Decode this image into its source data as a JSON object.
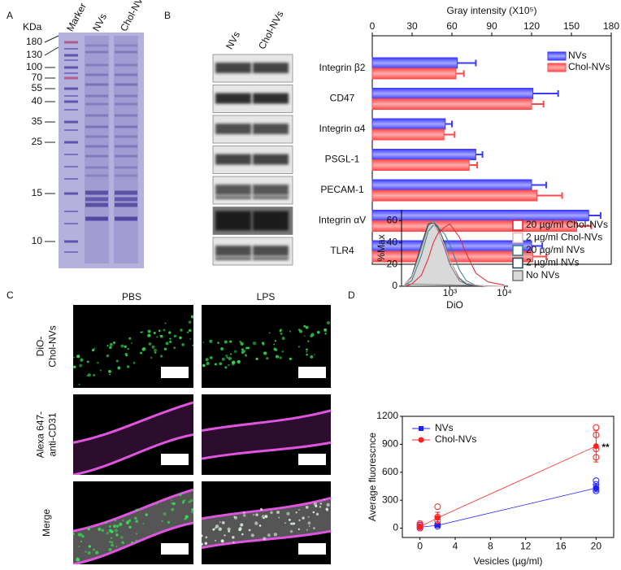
{
  "panels": [
    "A",
    "B",
    "C",
    "D"
  ],
  "gel": {
    "unit": "KDa",
    "lanes": [
      "Marker",
      "NVs",
      "Chol-NVs"
    ],
    "markers": [
      180,
      130,
      100,
      70,
      55,
      40,
      35,
      25,
      15,
      10
    ]
  },
  "blot": {
    "lanes": [
      "NVs",
      "Chol-NVs"
    ]
  },
  "microscopy": {
    "columns": [
      "PBS",
      "LPS"
    ],
    "rows": [
      [
        "DiO-",
        "Chol-NVs"
      ],
      [
        "Alexa 647-",
        "anti-CD31"
      ],
      [
        "Merge"
      ]
    ]
  },
  "chart_data": [
    {
      "type": "bar",
      "orientation": "horizontal",
      "x_label": "Gray intensity (X10⁵)",
      "categories": [
        "Integrin β2",
        "CD47",
        "Integrin α4",
        "PSGL-1",
        "PECAM-1",
        "Integrin αV",
        "TLR4"
      ],
      "series": [
        {
          "name": "NVs",
          "color": "#3b3bff",
          "values": [
            64,
            121,
            55,
            78,
            120,
            163,
            120
          ],
          "errors": [
            14,
            19,
            5,
            5,
            11,
            9,
            8
          ]
        },
        {
          "name": "Chol-NVs",
          "color": "#ff4a4a",
          "values": [
            63,
            120,
            54,
            73,
            124,
            154,
            121
          ],
          "errors": [
            6,
            9,
            8,
            6,
            19,
            11,
            10
          ]
        }
      ],
      "xlim": [
        0,
        180
      ],
      "xticks": [
        0,
        30,
        60,
        90,
        120,
        150,
        180
      ],
      "legend": "upper right"
    },
    {
      "type": "line",
      "x_label": "DiO",
      "y_label": "%Max",
      "xscale": "log",
      "x": [
        150,
        200,
        300,
        400,
        500,
        600,
        800,
        1000,
        1500,
        2000,
        3000,
        5000,
        10000
      ],
      "xlim": [
        130,
        11700
      ],
      "xticks": [
        {
          "value": 1000,
          "label": "10³"
        },
        {
          "value": 10000,
          "label": "10⁴"
        }
      ],
      "ylim": [
        0,
        70
      ],
      "yticks": [
        0,
        20,
        40,
        60
      ],
      "legend": "outside right",
      "series": [
        {
          "name": "20 µg/ml Chol-NVs",
          "color": "#e8222a",
          "values": [
            0,
            2,
            10,
            25,
            40,
            48,
            54,
            57,
            45,
            30,
            12,
            4,
            1
          ]
        },
        {
          "name": "2 µg/ml Chol-NVs",
          "color": "#e0b4b4",
          "values": [
            2,
            8,
            33,
            52,
            57,
            50,
            38,
            24,
            8,
            3,
            1,
            0,
            0
          ]
        },
        {
          "name": "20 µg/ml NVs",
          "color": "#2a8090",
          "values": [
            1,
            5,
            28,
            50,
            56,
            54,
            48,
            38,
            15,
            5,
            1,
            0,
            0
          ]
        },
        {
          "name": "2 µg/ml NVs",
          "color": "#23465a",
          "values": [
            2,
            9,
            38,
            57,
            58,
            55,
            40,
            24,
            7,
            2,
            1,
            0,
            0
          ]
        },
        {
          "name": "No NVs",
          "color": "#777777",
          "fill": "#d9d9d9",
          "values": [
            2,
            8,
            35,
            55,
            60,
            52,
            35,
            20,
            5,
            2,
            1,
            0,
            0
          ]
        }
      ]
    },
    {
      "type": "line",
      "x_label": "Vesicles (µg/ml)",
      "y_label": "Average fluorescnce",
      "x": [
        0,
        2,
        20
      ],
      "xlim": [
        -2,
        22
      ],
      "xticks": [
        0,
        4,
        8,
        12,
        16,
        20
      ],
      "ylim": [
        -100,
        1200
      ],
      "yticks": [
        0,
        300,
        600,
        900,
        1200
      ],
      "legend": "upper left",
      "annotation": "**",
      "series": [
        {
          "name": "NVs",
          "color": "#2020ff",
          "marker": "square",
          "values": [
            10,
            30,
            430
          ],
          "errors": [
            10,
            10,
            40
          ],
          "points": {
            "x": [
              0,
              0,
              0,
              2,
              2,
              20,
              20,
              20,
              20
            ],
            "y": [
              0,
              15,
              35,
              20,
              40,
              400,
              430,
              470,
              510
            ]
          }
        },
        {
          "name": "Chol-NVs",
          "color": "#ff2020",
          "marker": "circle",
          "values": [
            15,
            110,
            880
          ],
          "errors": [
            25,
            60,
            170
          ],
          "points": {
            "x": [
              0,
              0,
              0,
              2,
              2,
              2,
              20,
              20,
              20,
              20
            ],
            "y": [
              0,
              30,
              50,
              80,
              120,
              230,
              760,
              850,
              1000,
              1080
            ]
          }
        }
      ]
    }
  ]
}
